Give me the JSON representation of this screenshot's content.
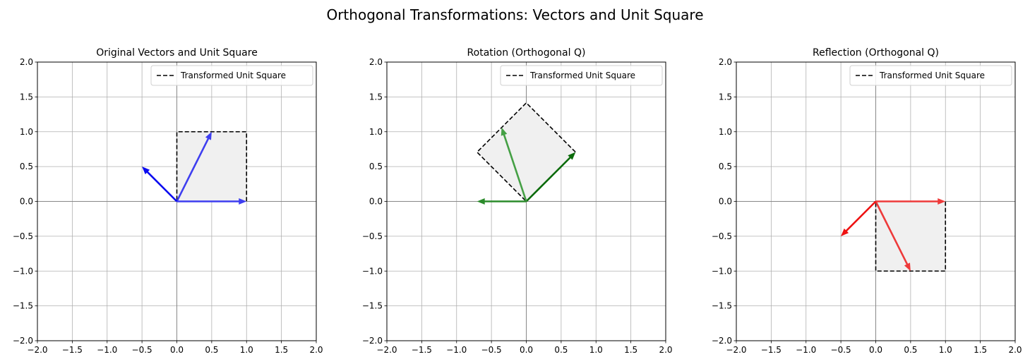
{
  "figure_title": "Orthogonal Transformations: Vectors and Unit Square",
  "chart_data": [
    {
      "type": "quiver",
      "title": "Original Vectors and Unit Square",
      "xlim": [
        -2,
        2
      ],
      "ylim": [
        -2,
        2
      ],
      "xticks": [
        "−2.0",
        "−1.5",
        "−1.0",
        "−0.5",
        "0.0",
        "0.5",
        "1.0",
        "1.5",
        "2.0"
      ],
      "yticks": [
        "−2.0",
        "−1.5",
        "−1.0",
        "−0.5",
        "0.0",
        "0.5",
        "1.0",
        "1.5",
        "2.0"
      ],
      "grid": true,
      "legend": {
        "placement": "top-right",
        "entries": [
          "Transformed Unit Square"
        ]
      },
      "square": [
        [
          0,
          0
        ],
        [
          1,
          0
        ],
        [
          1,
          1
        ],
        [
          0,
          1
        ]
      ],
      "square_fill": "#f0f0f0",
      "vectors": [
        {
          "x": 1,
          "y": 0,
          "color": "#3e3ef0"
        },
        {
          "x": 0.5,
          "y": 1,
          "color": "#3e3ef0"
        },
        {
          "x": -0.5,
          "y": 0.5,
          "color": "#0b0bf0"
        }
      ]
    },
    {
      "type": "quiver",
      "title": "Rotation (Orthogonal Q)",
      "xlim": [
        -2,
        2
      ],
      "ylim": [
        -2,
        2
      ],
      "xticks": [
        "−2.0",
        "−1.5",
        "−1.0",
        "−0.5",
        "0.0",
        "0.5",
        "1.0",
        "1.5",
        "2.0"
      ],
      "yticks": [
        "−2.0",
        "−1.5",
        "−1.0",
        "−0.5",
        "0.0",
        "0.5",
        "1.0",
        "1.5",
        "2.0"
      ],
      "grid": true,
      "legend": {
        "placement": "top-right",
        "entries": [
          "Transformed Unit Square"
        ]
      },
      "square": [
        [
          0,
          0
        ],
        [
          0.707,
          0.707
        ],
        [
          0,
          1.414
        ],
        [
          -0.707,
          0.707
        ]
      ],
      "square_fill": "#f0f0f0",
      "vectors": [
        {
          "x": 0.707,
          "y": 0.707,
          "color": "#0b6b0b"
        },
        {
          "x": -0.354,
          "y": 1.061,
          "color": "#45a045"
        },
        {
          "x": -0.707,
          "y": 0,
          "color": "#2b8b2b"
        }
      ]
    },
    {
      "type": "quiver",
      "title": "Reflection (Orthogonal Q)",
      "xlim": [
        -2,
        2
      ],
      "ylim": [
        -2,
        2
      ],
      "xticks": [
        "−2.0",
        "−1.5",
        "−1.0",
        "−0.5",
        "0.0",
        "0.5",
        "1.0",
        "1.5",
        "2.0"
      ],
      "yticks": [
        "−2.0",
        "−1.5",
        "−1.0",
        "−0.5",
        "0.0",
        "0.5",
        "1.0",
        "1.5",
        "2.0"
      ],
      "grid": true,
      "legend": {
        "placement": "top-right",
        "entries": [
          "Transformed Unit Square"
        ]
      },
      "square": [
        [
          0,
          0
        ],
        [
          1,
          0
        ],
        [
          1,
          -1
        ],
        [
          0,
          -1
        ]
      ],
      "square_fill": "#f0f0f0",
      "vectors": [
        {
          "x": 1,
          "y": 0,
          "color": "#ee3a3a"
        },
        {
          "x": 0.5,
          "y": -1,
          "color": "#ee3a3a"
        },
        {
          "x": -0.5,
          "y": -0.5,
          "color": "#ee1212"
        }
      ]
    }
  ]
}
